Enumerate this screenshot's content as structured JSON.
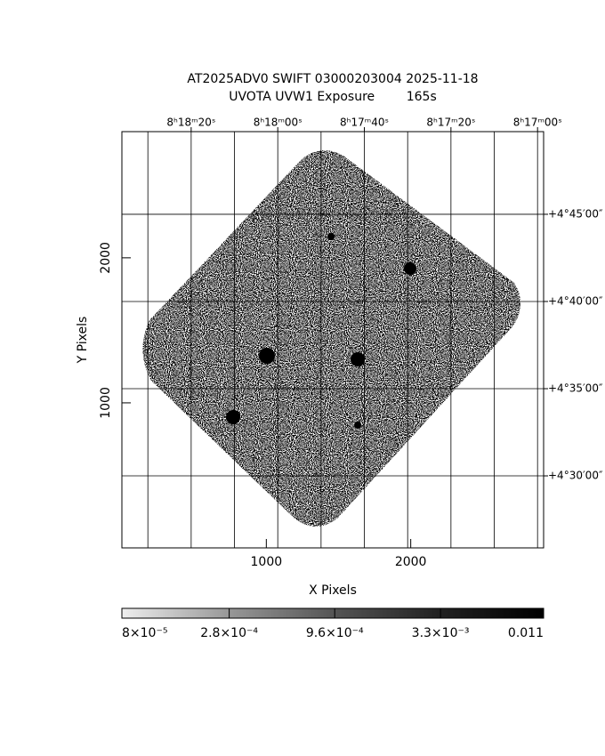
{
  "chart_data": {
    "type": "image",
    "title": "AT2025ADV0 SWIFT 03000203004 2025-11-18",
    "subtitle": "UVOTA UVW1 Exposure        165s",
    "xlabel": "X Pixels",
    "ylabel": "Y Pixels",
    "xlim": [
      0,
      2920
    ],
    "xticks": [
      1000,
      2000
    ],
    "ylim": [
      0,
      2870
    ],
    "yticks": [
      1000,
      2000
    ],
    "x2lim": [
      1116,
      1018.6
    ],
    "x2ticks": [
      {
        "value": 1100,
        "label": "8ʰ18ᵐ20ˢ"
      },
      {
        "value": 1080,
        "label": "8ʰ18ᵐ00ˢ"
      },
      {
        "value": 1060,
        "label": "8ʰ17ᵐ40ˢ"
      },
      {
        "value": 1040,
        "label": "8ʰ17ᵐ20ˢ"
      },
      {
        "value": 1020,
        "label": "8ʰ17ᵐ00ˢ"
      }
    ],
    "x2grid": [
      1110,
      1100,
      1090,
      1080,
      1070,
      1060,
      1050,
      1040,
      1030,
      1020
    ],
    "y2lim": [
      25.87,
      49.74
    ],
    "y2ticks": [
      {
        "value": 30,
        "label": "+4°30′00″"
      },
      {
        "value": 35,
        "label": "+4°35′00″"
      },
      {
        "value": 40,
        "label": "+4°40′00″"
      },
      {
        "value": 45,
        "label": "+4°45′00″"
      }
    ],
    "grid": true,
    "colorbar": {
      "scale": "log",
      "lim": [
        8e-05,
        0.011
      ],
      "ticks": [
        {
          "value": 8e-05,
          "label": "8×10⁻⁵"
        },
        {
          "value": 0.00028,
          "label": "2.8×10⁻⁴"
        },
        {
          "value": 0.00096,
          "label": "9.6×10⁻⁴"
        },
        {
          "value": 0.0033,
          "label": "3.3×10⁻³"
        },
        0.011
      ]
    }
  }
}
